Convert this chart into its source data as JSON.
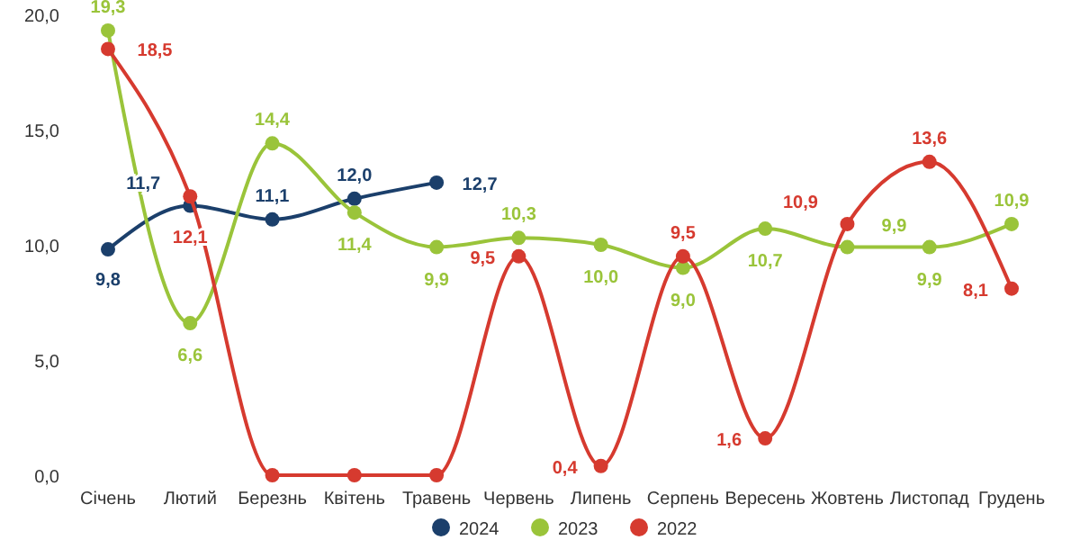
{
  "chart_data": {
    "type": "line",
    "categories": [
      "Січень",
      "Лютий",
      "Березнь",
      "Квітень",
      "Травень",
      "Червень",
      "Липень",
      "Серпень",
      "Вересень",
      "Жовтень",
      "Листопад",
      "Грудень"
    ],
    "series": [
      {
        "name": "2024",
        "color": "#1b3f6b",
        "values": [
          9.8,
          11.7,
          11.1,
          12.0,
          12.7,
          null,
          null,
          null,
          null,
          null,
          null,
          null
        ],
        "value_labels": [
          "9,8",
          "11,7",
          "11,1",
          "12,0",
          "12,7",
          null,
          null,
          null,
          null,
          null,
          null,
          null
        ]
      },
      {
        "name": "2023",
        "color": "#9ac43a",
        "values": [
          19.3,
          6.6,
          14.4,
          11.4,
          9.9,
          10.3,
          10.0,
          9.0,
          10.7,
          9.9,
          9.9,
          10.9
        ],
        "value_labels": [
          "19,3",
          "6,6",
          "14,4",
          "11,4",
          "9,9",
          "10,3",
          "10,0",
          "9,0",
          "10,7",
          "9,9",
          "9,9",
          "10,9"
        ]
      },
      {
        "name": "2022",
        "color": "#d63a2f",
        "values": [
          18.5,
          12.1,
          0,
          0,
          0,
          9.5,
          0.4,
          9.5,
          1.6,
          10.9,
          13.6,
          8.1
        ],
        "value_labels": [
          "18,5",
          "12,1",
          null,
          null,
          null,
          "9,5",
          "0,4",
          "9,5",
          "1,6",
          "10,9",
          "13,6",
          "8,1"
        ]
      }
    ],
    "ylim": [
      0,
      20
    ],
    "yticks": [
      {
        "value": 0,
        "label": "0,0"
      },
      {
        "value": 5,
        "label": "5,0"
      },
      {
        "value": 10,
        "label": "10,0"
      },
      {
        "value": 15,
        "label": "15,0"
      },
      {
        "value": 20,
        "label": "20,0"
      }
    ],
    "grid": false,
    "legend": "bottom",
    "marker": "circle",
    "line_style": "solid"
  }
}
